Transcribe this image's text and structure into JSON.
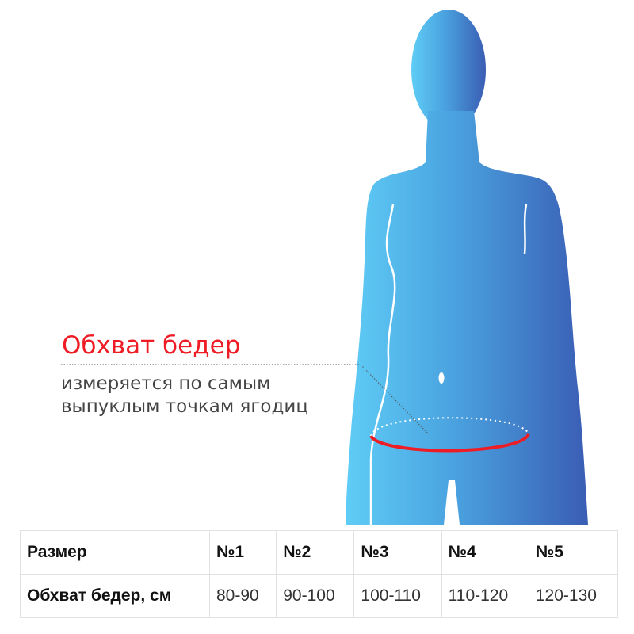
{
  "annotation": {
    "title": "Обхват бедер",
    "description_lines": [
      "измеряется по самым",
      "выпуклым точкам ягодиц"
    ]
  },
  "colors": {
    "silhouette_light": "#5fcdf6",
    "silhouette_dark": "#3a5db4",
    "measure_line": "#ee1c25",
    "title": "#ee1c25"
  },
  "size_table": {
    "row_header_size": "Размер",
    "row_header_hip": "Обхват бедер, см",
    "sizes": [
      "№1",
      "№2",
      "№3",
      "№4",
      "№5"
    ],
    "hip_ranges": [
      "80-90",
      "90-100",
      "100-110",
      "110-120",
      "120-130"
    ]
  }
}
